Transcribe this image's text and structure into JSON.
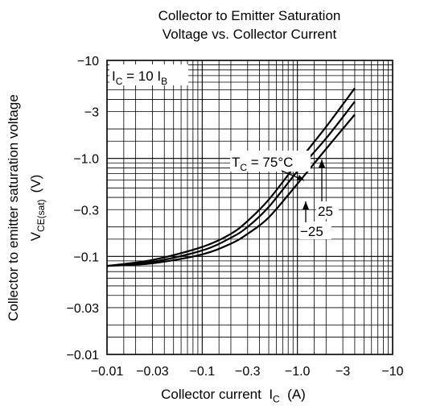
{
  "chart_data": {
    "type": "line",
    "title_line1": "Collector to Emitter Saturation",
    "title_line2": "Voltage vs. Collector Current",
    "xlabel_main": "Collector current",
    "xlabel_symbol": "I",
    "xlabel_sub": "C",
    "xlabel_unit": "(A)",
    "ylabel_line1": "Collector to emitter saturation voltage",
    "ylabel_symbol": "V",
    "ylabel_sub": "CE(sat)",
    "ylabel_unit": "(V)",
    "x_scale": "log",
    "y_scale": "log",
    "xlim": [
      -0.01,
      -10
    ],
    "ylim": [
      -0.01,
      -10
    ],
    "x_ticks": [
      {
        "value": -0.01,
        "label": "−0.01"
      },
      {
        "value": -0.03,
        "label": "−0.03"
      },
      {
        "value": -0.1,
        "label": "−0.1"
      },
      {
        "value": -0.3,
        "label": "−0.3"
      },
      {
        "value": -1.0,
        "label": "−1.0"
      },
      {
        "value": -3,
        "label": "−3"
      },
      {
        "value": -10,
        "label": "−10"
      }
    ],
    "y_ticks": [
      {
        "value": -0.01,
        "label": "−0.01"
      },
      {
        "value": -0.03,
        "label": "−0.03"
      },
      {
        "value": -0.1,
        "label": "−0.1"
      },
      {
        "value": -0.3,
        "label": "−0.3"
      },
      {
        "value": -1.0,
        "label": "−1.0"
      },
      {
        "value": -3,
        "label": "−3"
      },
      {
        "value": -10,
        "label": "−10"
      }
    ],
    "grid": true,
    "annotations": {
      "condition": {
        "main": "I",
        "sub1": "C",
        "mid": " = 10 I",
        "sub2": "B"
      },
      "tc_label": {
        "main": "T",
        "sub": "C",
        "rest": " = 75°C"
      },
      "label_25": "25",
      "label_minus25": "−25"
    },
    "series": [
      {
        "label_key": "tc_label",
        "x": [
          -0.01,
          -0.03,
          -0.1,
          -0.2,
          -0.3,
          -0.5,
          -1.0,
          -2.0,
          -4.0
        ],
        "y": [
          -0.08,
          -0.092,
          -0.125,
          -0.17,
          -0.23,
          -0.38,
          -0.9,
          -2.1,
          -5.2
        ]
      },
      {
        "label_key": "label_25",
        "x": [
          -0.01,
          -0.03,
          -0.1,
          -0.2,
          -0.3,
          -0.5,
          -1.0,
          -2.0,
          -4.0
        ],
        "y": [
          -0.08,
          -0.088,
          -0.115,
          -0.155,
          -0.2,
          -0.32,
          -0.74,
          -1.6,
          -3.8
        ]
      },
      {
        "label_key": "label_minus25",
        "x": [
          -0.01,
          -0.03,
          -0.1,
          -0.2,
          -0.3,
          -0.5,
          -1.0,
          -2.0,
          -4.0
        ],
        "y": [
          -0.08,
          -0.085,
          -0.105,
          -0.135,
          -0.17,
          -0.25,
          -0.55,
          -1.25,
          -2.8
        ]
      }
    ]
  }
}
